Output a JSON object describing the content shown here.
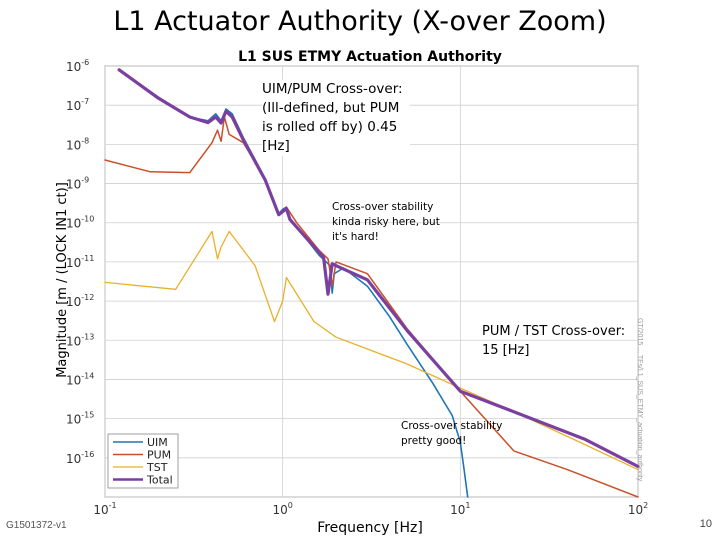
{
  "slide": {
    "title": "L1 Actuator Authority (X-over Zoom)",
    "id_label": "G1501372-v1",
    "page_number": "10",
    "side_caption": "GT/2015 ... TFs/L1_SUS_ETMY_actuation_authority"
  },
  "annotations": {
    "uim_pum": "UIM/PUM Cross-over: (Ill-defined, but PUM is rolled off by) 0.45 [Hz]",
    "crossover_risky": "Cross-over stability kinda risky here, but it's hard!",
    "pum_tst": "PUM / TST Cross-over: 15 [Hz]",
    "crossover_good": "Cross-over stability pretty good!"
  },
  "chart_data": {
    "type": "line",
    "title": "L1 SUS ETMY Actuation Authority",
    "xlabel": "Frequency [Hz]",
    "ylabel": "Magnitude [m / (LOCK IN1 ct)]",
    "xscale": "log",
    "yscale": "log",
    "xlim": [
      0.1,
      100
    ],
    "ylim": [
      1e-17,
      1e-06
    ],
    "grid": true,
    "legend_position": "bottom-left",
    "x_tick_labels": [
      {
        "base": "10",
        "exp": "-1"
      },
      {
        "base": "10",
        "exp": "0"
      },
      {
        "base": "10",
        "exp": "1"
      },
      {
        "base": "10",
        "exp": "2"
      }
    ],
    "y_tick_labels": [
      {
        "base": "10",
        "exp": "-6"
      },
      {
        "base": "10",
        "exp": "-7"
      },
      {
        "base": "10",
        "exp": "-8"
      },
      {
        "base": "10",
        "exp": "-9"
      },
      {
        "base": "10",
        "exp": "-10"
      },
      {
        "base": "10",
        "exp": "-11"
      },
      {
        "base": "10",
        "exp": "-12"
      },
      {
        "base": "10",
        "exp": "-13"
      },
      {
        "base": "10",
        "exp": "-14"
      },
      {
        "base": "10",
        "exp": "-15"
      },
      {
        "base": "10",
        "exp": "-16"
      }
    ],
    "series": [
      {
        "name": "UIM",
        "color": "#1f77b4",
        "width": 1.6,
        "points": [
          [
            0.12,
            8e-07
          ],
          [
            0.2,
            1.6e-07
          ],
          [
            0.3,
            5e-08
          ],
          [
            0.38,
            4e-08
          ],
          [
            0.42,
            6e-08
          ],
          [
            0.45,
            4e-08
          ],
          [
            0.48,
            8e-08
          ],
          [
            0.52,
            6e-08
          ],
          [
            0.6,
            1.5e-08
          ],
          [
            0.8,
            1.3e-09
          ],
          [
            0.95,
            1.7e-10
          ],
          [
            1.0,
            2.2e-10
          ],
          [
            1.05,
            2.5e-10
          ],
          [
            1.1,
            1.3e-10
          ],
          [
            1.3,
            5e-11
          ],
          [
            1.6,
            1.5e-11
          ],
          [
            1.85,
            8e-12
          ],
          [
            1.9,
            1.6e-12
          ],
          [
            1.95,
            5e-12
          ],
          [
            2.2,
            7e-12
          ],
          [
            3.0,
            2.4e-12
          ],
          [
            4.0,
            4e-13
          ],
          [
            5.0,
            8e-14
          ],
          [
            7.0,
            8e-15
          ],
          [
            9.0,
            1.2e-15
          ],
          [
            10,
            2.5e-16
          ],
          [
            10.5,
            5e-17
          ],
          [
            11,
            1e-17
          ]
        ]
      },
      {
        "name": "PUM",
        "color": "#c8502a",
        "width": 1.5,
        "points": [
          [
            0.1,
            4e-09
          ],
          [
            0.18,
            2e-09
          ],
          [
            0.3,
            1.9e-09
          ],
          [
            0.4,
            1.1e-08
          ],
          [
            0.43,
            2.3e-08
          ],
          [
            0.45,
            1.2e-08
          ],
          [
            0.47,
            5e-08
          ],
          [
            0.5,
            1.8e-08
          ],
          [
            0.6,
            1.1e-08
          ],
          [
            0.8,
            1.3e-09
          ],
          [
            0.95,
            1.6e-10
          ],
          [
            1.05,
            2.5e-10
          ],
          [
            1.2,
            1e-10
          ],
          [
            1.6,
            2e-11
          ],
          [
            1.8,
            1.2e-11
          ],
          [
            1.9,
            2.5e-12
          ],
          [
            2.0,
            1e-11
          ],
          [
            3.0,
            5e-12
          ],
          [
            5.0,
            2e-13
          ],
          [
            10,
            5e-15
          ],
          [
            20,
            1.5e-16
          ],
          [
            40,
            5e-17
          ],
          [
            100,
            1e-17
          ]
        ]
      },
      {
        "name": "TST",
        "color": "#e8b12b",
        "width": 1.3,
        "points": [
          [
            0.1,
            3e-12
          ],
          [
            0.25,
            2e-12
          ],
          [
            0.4,
            6e-11
          ],
          [
            0.43,
            1.2e-11
          ],
          [
            0.45,
            2.4e-11
          ],
          [
            0.5,
            6e-11
          ],
          [
            0.7,
            8e-12
          ],
          [
            0.9,
            3e-13
          ],
          [
            1.0,
            1e-12
          ],
          [
            1.05,
            4e-12
          ],
          [
            1.5,
            3e-13
          ],
          [
            2.0,
            1.2e-13
          ],
          [
            3.0,
            6e-14
          ],
          [
            5.0,
            2.5e-14
          ],
          [
            10,
            6e-15
          ],
          [
            20,
            1.5e-15
          ],
          [
            50,
            2.2e-16
          ],
          [
            100,
            5e-17
          ]
        ]
      },
      {
        "name": "Total",
        "color": "#7b3fa0",
        "width": 3.2,
        "points": [
          [
            0.12,
            8e-07
          ],
          [
            0.2,
            1.5e-07
          ],
          [
            0.3,
            5e-08
          ],
          [
            0.38,
            3.6e-08
          ],
          [
            0.42,
            5e-08
          ],
          [
            0.45,
            3.5e-08
          ],
          [
            0.48,
            7e-08
          ],
          [
            0.52,
            5e-08
          ],
          [
            0.6,
            1.3e-08
          ],
          [
            0.8,
            1.2e-09
          ],
          [
            0.95,
            1.6e-10
          ],
          [
            1.05,
            2.3e-10
          ],
          [
            1.1,
            1.2e-10
          ],
          [
            1.4,
            3.5e-11
          ],
          [
            1.7,
            1.3e-11
          ],
          [
            1.8,
            1.5e-12
          ],
          [
            1.9,
            9e-12
          ],
          [
            2.0,
            8e-12
          ],
          [
            3.0,
            3.5e-12
          ],
          [
            5.0,
            1.8e-13
          ],
          [
            10,
            5e-15
          ],
          [
            20,
            1.5e-15
          ],
          [
            50,
            3e-16
          ],
          [
            100,
            6e-17
          ]
        ]
      }
    ]
  }
}
